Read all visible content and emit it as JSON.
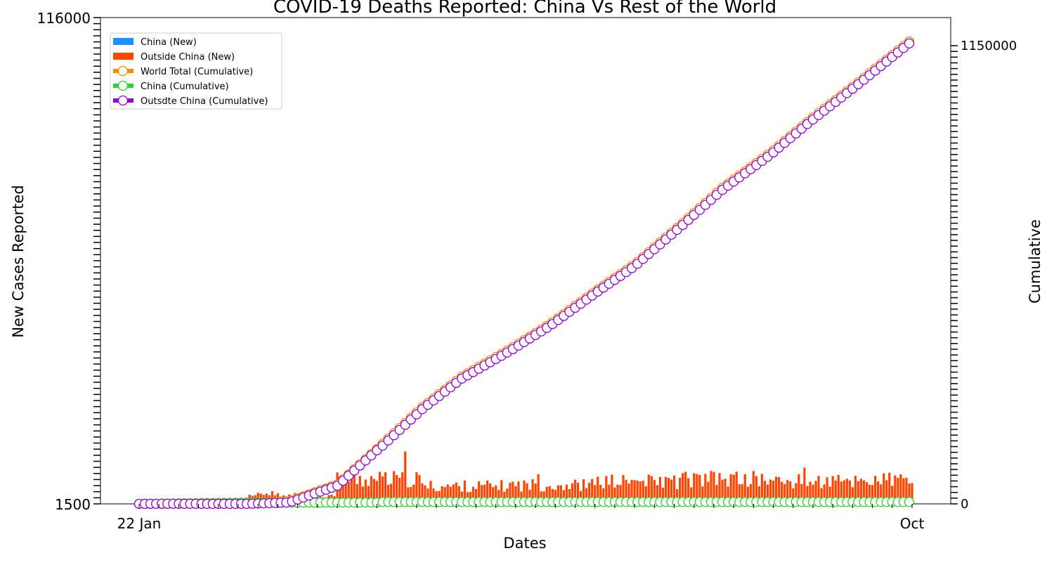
{
  "colors": {
    "china_new": "#1e90ff",
    "outside_new": "#ff4500",
    "world_cum": "#ff8c00",
    "china_cum": "#32cd32",
    "outside_cum": "#9400d3"
  },
  "chart_data": {
    "type": "bar",
    "title": "COVID-19 Deaths Reported: China Vs Rest of the World",
    "xlabel": "Dates",
    "ylabel": "New Cases Reported",
    "y2label": "Cumulative",
    "legend_position": "top-left",
    "grid": false,
    "x_start": "2020-01-22",
    "x_end": "2020-10-21",
    "x_tick_labels": [
      "22 Jan",
      "Oct"
    ],
    "ylim_left": [
      0,
      116000
    ],
    "ylim_right": [
      0,
      1150000
    ],
    "left_tick_labels": [
      "1500",
      "116000"
    ],
    "right_tick_labels_sample": [
      "0",
      "1150000"
    ],
    "series": [
      {
        "name": "China (New)",
        "kind": "bar",
        "axis": "left",
        "description_values": "0 - 150 per day, negligible except 17 Apr (~1290)"
      },
      {
        "name": "Outside China (New)",
        "kind": "bar",
        "axis": "left",
        "monthly_avg": {
          "2020-03": 2000,
          "2020-04": 6000,
          "2020-05": 4300,
          "2020-06": 4600,
          "2020-07": 5400,
          "2020-08": 6000,
          "2020-09": 5400,
          "2020-10": 5800
        }
      },
      {
        "name": "World Total (Cumulative)",
        "kind": "line",
        "axis": "right",
        "points": [
          [
            "2020-01-22",
            17
          ],
          [
            "2020-02-15",
            1700
          ],
          [
            "2020-03-01",
            3000
          ],
          [
            "2020-03-15",
            6500
          ],
          [
            "2020-04-01",
            47000
          ],
          [
            "2020-04-15",
            133000
          ],
          [
            "2020-05-01",
            234000
          ],
          [
            "2020-05-15",
            308000
          ],
          [
            "2020-06-01",
            375000
          ],
          [
            "2020-06-15",
            435000
          ],
          [
            "2020-07-01",
            514000
          ],
          [
            "2020-07-15",
            580000
          ],
          [
            "2020-08-01",
            680000
          ],
          [
            "2020-08-15",
            765000
          ],
          [
            "2020-09-01",
            850000
          ],
          [
            "2020-09-15",
            930000
          ],
          [
            "2020-10-01",
            1015000
          ],
          [
            "2020-10-21",
            1125000
          ]
        ]
      },
      {
        "name": "China (Cumulative)",
        "kind": "line",
        "axis": "right",
        "points": [
          [
            "2020-01-22",
            17
          ],
          [
            "2020-02-01",
            259
          ],
          [
            "2020-02-15",
            1666
          ],
          [
            "2020-03-01",
            2870
          ],
          [
            "2020-04-16",
            3342
          ],
          [
            "2020-04-17",
            4632
          ],
          [
            "2020-10-21",
            4739
          ]
        ]
      },
      {
        "name": "Outsdte China (Cumulative)",
        "kind": "line",
        "axis": "right",
        "note": "World Total minus China"
      }
    ]
  }
}
